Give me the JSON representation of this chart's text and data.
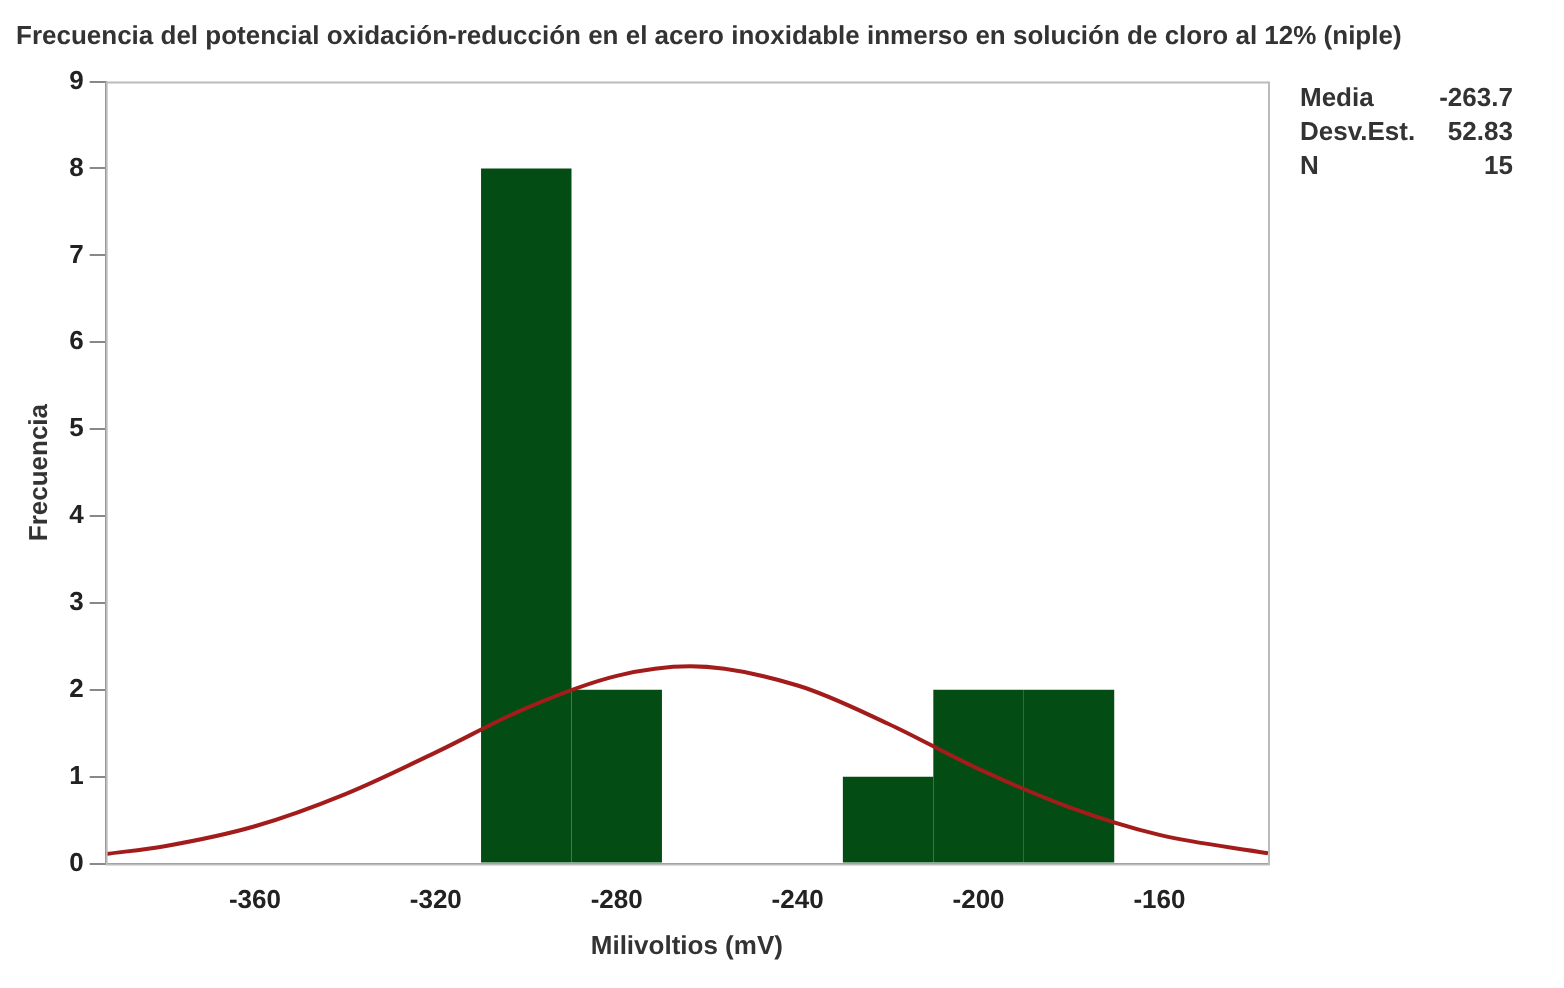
{
  "chart_data": {
    "type": "histogram",
    "title": "Frecuencia del potencial oxidación-reducción en el acero inoxidable inmerso en solución de cloro al 12% (niple)",
    "xlabel": "Milivoltios (mV)",
    "ylabel": "Frecuencia",
    "bins": [
      -310,
      -290,
      -270,
      -250,
      -230,
      -210,
      -190,
      -170
    ],
    "values": [
      8,
      2,
      0,
      0,
      1,
      2,
      2
    ],
    "color": "#034d15",
    "series": [
      {
        "type": "line",
        "color": "#a31c1c",
        "x": [
          -393,
          -380,
          -360,
          -340,
          -320,
          -300,
          -280,
          -263.7,
          -240,
          -220,
          -200,
          -180,
          -160,
          -136
        ],
        "values": [
          0.11,
          0.2,
          0.43,
          0.8,
          1.28,
          1.79,
          2.16,
          2.27,
          2.05,
          1.61,
          1.09,
          0.65,
          0.33,
          0.12
        ]
      }
    ],
    "xlim": [
      -393,
      -136
    ],
    "xticks": [
      -360,
      -320,
      -280,
      -240,
      -200,
      -160
    ],
    "ylim": [
      0,
      9
    ],
    "yticks": [
      0,
      1,
      2,
      3,
      4,
      5,
      6,
      7,
      8,
      9
    ],
    "grid": false,
    "legend": false,
    "annotations": [
      "Media -263.7",
      "Desv.Est. 52.83",
      "N 15"
    ]
  }
}
